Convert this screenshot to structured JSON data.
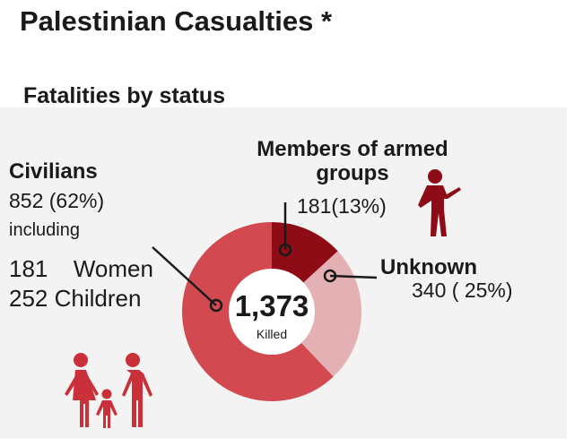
{
  "title": "Palestinian Casualties *",
  "subtitle": "Fatalities by status",
  "colors": {
    "civilians": "#d24a50",
    "armed": "#8e0c15",
    "unknown": "#e3b0b3",
    "leader": "#1a1a1a",
    "icon": "#c9303a",
    "soldier": "#8e0c15"
  },
  "chart_data": {
    "type": "pie",
    "style": "donut",
    "total": {
      "value": "1,373",
      "label": "Killed"
    },
    "slices": [
      {
        "label": "Civilians",
        "value": 852,
        "display": "852 (62%)",
        "percent": 62
      },
      {
        "label": "Members of armed groups",
        "value": 181,
        "display": "181(13%)",
        "percent": 13
      },
      {
        "label": "Unknown",
        "value": 340,
        "display": "340 ( 25%)",
        "percent": 25
      }
    ],
    "civilians_detail": {
      "including": "including",
      "rows": [
        {
          "count": "181",
          "group": "Women"
        },
        {
          "count": "252",
          "group": "Children"
        }
      ]
    },
    "armed_label_lines": [
      "Members of armed",
      "groups"
    ]
  },
  "icons": [
    "family-icon",
    "soldier-icon"
  ]
}
